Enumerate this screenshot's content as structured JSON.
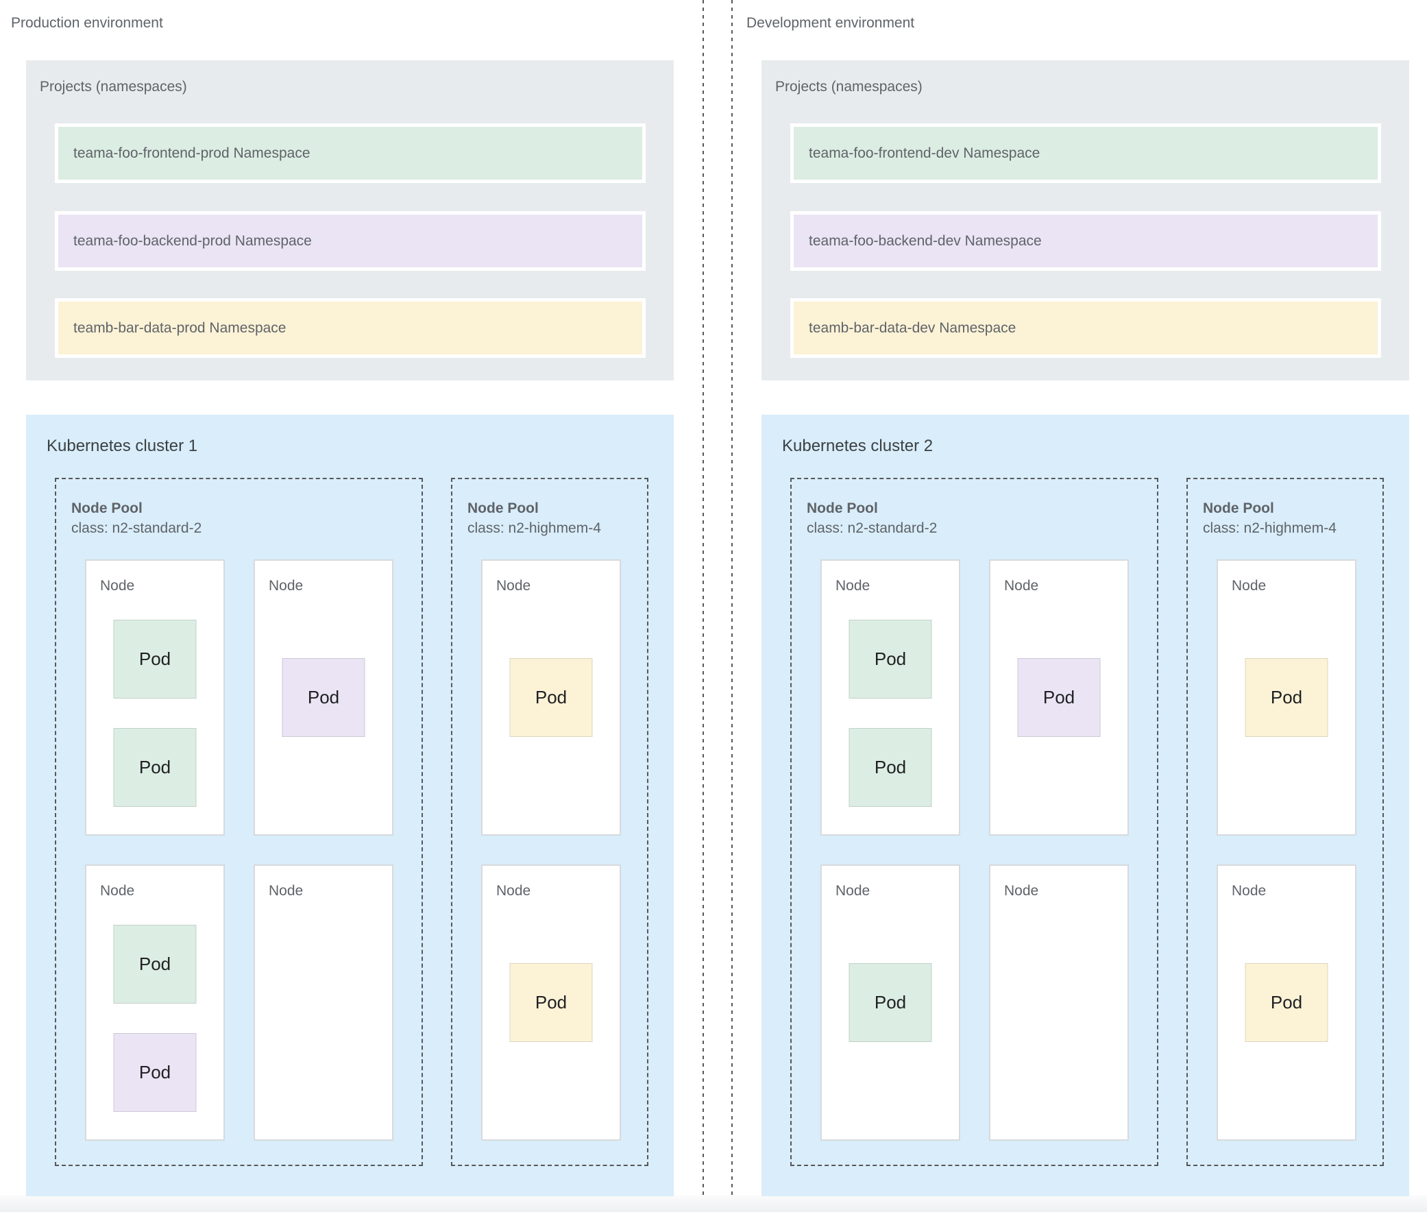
{
  "palette": {
    "namespace_green": "#dcede3",
    "namespace_purple": "#eae4f4",
    "namespace_yellow": "#fcf2d6",
    "cluster_blue": "#d9edfa",
    "projects_gray": "#e8ebee",
    "node_white": "#ffffff",
    "label_gray": "#5f6368",
    "title_dark": "#3c4043",
    "pod_text": "#202124",
    "dashed_border": "#55585a",
    "footer_gray": "#eef0f1"
  },
  "environments": [
    {
      "id": "production",
      "label": "Production environment",
      "projects": {
        "title": "Projects (namespaces)",
        "namespaces": [
          {
            "text": "teama-foo-frontend-prod Namespace",
            "color": "green"
          },
          {
            "text": "teama-foo-backend-prod Namespace",
            "color": "purple"
          },
          {
            "text": "teamb-bar-data-prod Namespace",
            "color": "yellow"
          }
        ]
      },
      "cluster": {
        "title": "Kubernetes cluster 1",
        "pools": [
          {
            "name": "Node Pool",
            "class_label": "class: n2-standard-2",
            "variant": "wide",
            "nodes": [
              {
                "label": "Node",
                "pods": [
                  {
                    "text": "Pod",
                    "color": "green",
                    "slot": "top"
                  },
                  {
                    "text": "Pod",
                    "color": "green",
                    "slot": "bottom"
                  }
                ]
              },
              {
                "label": "Node",
                "pods": [
                  {
                    "text": "Pod",
                    "color": "purple",
                    "slot": "center"
                  }
                ]
              },
              {
                "label": "Node",
                "pods": [
                  {
                    "text": "Pod",
                    "color": "green",
                    "slot": "top"
                  },
                  {
                    "text": "Pod",
                    "color": "purple",
                    "slot": "bottom"
                  }
                ]
              },
              {
                "label": "Node",
                "pods": []
              }
            ]
          },
          {
            "name": "Node Pool",
            "class_label": "class: n2-highmem-4",
            "variant": "narrow",
            "nodes": [
              {
                "label": "Node",
                "pods": [
                  {
                    "text": "Pod",
                    "color": "yellow",
                    "slot": "center"
                  }
                ]
              },
              {
                "label": "Node",
                "pods": [
                  {
                    "text": "Pod",
                    "color": "yellow",
                    "slot": "center"
                  }
                ]
              }
            ]
          }
        ]
      }
    },
    {
      "id": "development",
      "label": "Development environment",
      "projects": {
        "title": "Projects (namespaces)",
        "namespaces": [
          {
            "text": "teama-foo-frontend-dev Namespace",
            "color": "green"
          },
          {
            "text": "teama-foo-backend-dev Namespace",
            "color": "purple"
          },
          {
            "text": "teamb-bar-data-dev Namespace",
            "color": "yellow"
          }
        ]
      },
      "cluster": {
        "title": "Kubernetes cluster 2",
        "pools": [
          {
            "name": "Node Pool",
            "class_label": "class: n2-standard-2",
            "variant": "wide",
            "nodes": [
              {
                "label": "Node",
                "pods": [
                  {
                    "text": "Pod",
                    "color": "green",
                    "slot": "top"
                  },
                  {
                    "text": "Pod",
                    "color": "green",
                    "slot": "bottom"
                  }
                ]
              },
              {
                "label": "Node",
                "pods": [
                  {
                    "text": "Pod",
                    "color": "purple",
                    "slot": "center"
                  }
                ]
              },
              {
                "label": "Node",
                "pods": [
                  {
                    "text": "Pod",
                    "color": "green",
                    "slot": "center"
                  }
                ]
              },
              {
                "label": "Node",
                "pods": []
              }
            ]
          },
          {
            "name": "Node Pool",
            "class_label": "class: n2-highmem-4",
            "variant": "narrow",
            "nodes": [
              {
                "label": "Node",
                "pods": [
                  {
                    "text": "Pod",
                    "color": "yellow",
                    "slot": "center"
                  }
                ]
              },
              {
                "label": "Node",
                "pods": [
                  {
                    "text": "Pod",
                    "color": "yellow",
                    "slot": "center"
                  }
                ]
              }
            ]
          }
        ]
      }
    }
  ]
}
